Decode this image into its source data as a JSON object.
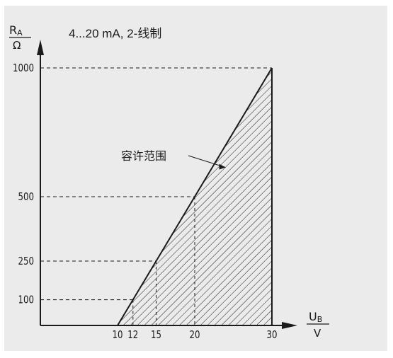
{
  "chart_data": {
    "type": "area",
    "title": "4...20 mA, 2-线制",
    "ylabel_top": "R",
    "ylabel_top_sub": "A",
    "ylabel_bottom": "Ω",
    "xlabel_top": "U",
    "xlabel_top_sub": "B",
    "xlabel_bottom": "V",
    "xlim": [
      0,
      33
    ],
    "ylim": [
      0,
      1100
    ],
    "x_ticks": [
      "10",
      "12",
      "15",
      "20",
      "30"
    ],
    "y_ticks": [
      "100",
      "250",
      "500",
      "1000"
    ],
    "boundary_line": [
      {
        "x": 10,
        "y": 0
      },
      {
        "x": 30,
        "y": 1000
      }
    ],
    "region": [
      {
        "x": 10,
        "y": 0
      },
      {
        "x": 30,
        "y": 1000
      },
      {
        "x": 30,
        "y": 0
      }
    ],
    "reference_points": [
      {
        "x": 12,
        "y": 100
      },
      {
        "x": 15,
        "y": 250
      },
      {
        "x": 20,
        "y": 500
      },
      {
        "x": 30,
        "y": 1000
      }
    ],
    "annotation": "容许范围",
    "annotation_target": {
      "x": 24,
      "y": 600
    },
    "grid": false
  },
  "colors": {
    "background": "#ebebeb",
    "ink": "#1a1a1a"
  }
}
